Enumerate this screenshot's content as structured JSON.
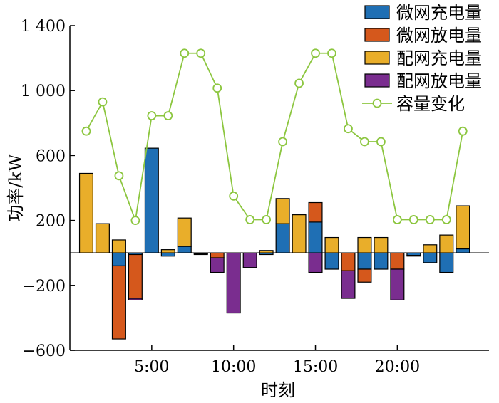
{
  "chart_data": {
    "type": "bar",
    "xlabel": "时刻",
    "ylabel": "功率/kW",
    "ylim": [
      -600,
      1400
    ],
    "y_ticks": [
      -600,
      -200,
      200,
      600,
      1000,
      1400
    ],
    "y_tick_labels": [
      "−600",
      "−200",
      "200",
      "600",
      "1 000",
      "1 400"
    ],
    "x": [
      1,
      2,
      3,
      4,
      5,
      6,
      7,
      8,
      9,
      10,
      11,
      12,
      13,
      14,
      15,
      16,
      17,
      18,
      19,
      20,
      21,
      22,
      23,
      24
    ],
    "x_ticks": [
      5,
      10,
      15,
      20
    ],
    "x_tick_labels": [
      "5:00",
      "10:00",
      "15:00",
      "20:00"
    ],
    "legend_position": "top-right",
    "series": [
      {
        "name": "微网充电量",
        "kind": "bar",
        "color": "#1f6fb4",
        "values": [
          0,
          0,
          -80,
          -10,
          645,
          -20,
          40,
          -5,
          0,
          0,
          0,
          -10,
          180,
          0,
          190,
          -100,
          0,
          -100,
          -100,
          0,
          -15,
          -60,
          -120,
          25
        ]
      },
      {
        "name": "微网放电量",
        "kind": "bar",
        "color": "#d5581c",
        "values": [
          0,
          0,
          -450,
          -270,
          0,
          0,
          0,
          0,
          -30,
          0,
          0,
          0,
          0,
          0,
          120,
          0,
          -110,
          -80,
          0,
          -100,
          0,
          0,
          0,
          0
        ]
      },
      {
        "name": "配网充电量",
        "kind": "bar",
        "color": "#e9ae2a",
        "values": [
          490,
          180,
          80,
          0,
          0,
          20,
          175,
          0,
          0,
          0,
          0,
          15,
          155,
          235,
          0,
          95,
          0,
          95,
          95,
          0,
          0,
          50,
          110,
          265
        ]
      },
      {
        "name": "配网放电量",
        "kind": "bar",
        "color": "#7a2d8f",
        "values": [
          0,
          0,
          0,
          -10,
          0,
          0,
          0,
          -5,
          -90,
          -370,
          -90,
          0,
          0,
          0,
          -120,
          0,
          -170,
          0,
          0,
          -190,
          -5,
          0,
          0,
          0
        ]
      },
      {
        "name": "容量变化",
        "kind": "line",
        "color": "#8cc63f",
        "values": [
          750,
          930,
          475,
          200,
          845,
          845,
          1230,
          1230,
          1015,
          350,
          205,
          205,
          685,
          1045,
          1230,
          1230,
          765,
          685,
          685,
          205,
          205,
          205,
          205,
          750
        ]
      }
    ]
  }
}
